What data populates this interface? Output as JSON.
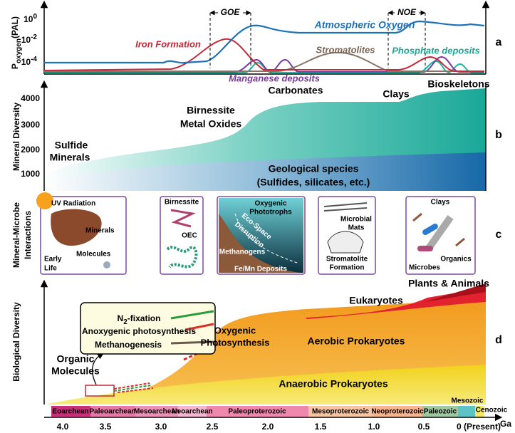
{
  "panel_a": {
    "letter": "a",
    "y_label": {
      "base": "P",
      "sub": "oxygen",
      "rest": "(PAL)"
    },
    "y_ticks": [
      {
        "base": "10",
        "exp": "0"
      },
      {
        "base": "10",
        "exp": "-2"
      },
      {
        "base": "10",
        "exp": "-4"
      }
    ],
    "labels": {
      "goe": "GOE",
      "noe": "NOE",
      "atmospheric_oxygen": "Atmospheric Oxygen",
      "iron_formation": "Iron Formation",
      "stromatolites": "Stromatolites",
      "phosphate": "Phosphate deposits",
      "manganese": "Manganese deposits"
    }
  },
  "panel_b": {
    "letter": "b",
    "y_label": "Mineral Diversity",
    "y_ticks": [
      1000,
      2000,
      3000,
      4000
    ],
    "labels": {
      "sulfide": [
        "Sulfide",
        "Minerals"
      ],
      "birnessite": [
        "Birnessite",
        "Metal Oxides"
      ],
      "carbonates": "Carbonates",
      "clays": "Clays",
      "bioskeletons": "Bioskeletons",
      "geological": [
        "Geological species",
        "(Sulfides, silicates, etc.)"
      ]
    }
  },
  "panel_c": {
    "letter": "c",
    "y_label": [
      "Mineral-Microbe",
      "Interactions"
    ],
    "boxes": [
      [
        "UV Radiation",
        "Minerals",
        "Molecules",
        "Early",
        "Life"
      ],
      [
        "Birnessite",
        "OEC"
      ],
      [
        "Oxygenic",
        "Phototrophs",
        "Eco-Space",
        "Disruption",
        "Methanogens",
        "Fe/Mn Deposits"
      ],
      [
        "Microbial",
        "Mats",
        "Stromatolite",
        "Formation"
      ],
      [
        "Clays",
        "Organics",
        "Microbes"
      ]
    ]
  },
  "panel_d": {
    "letter": "d",
    "y_label": "Biological Diversity",
    "labels": {
      "plants": "Plants & Animals",
      "eukaryotes": "Eukaryotes",
      "aerobic": "Aerobic Prokaryotes",
      "oxygenic": [
        "Oxygenic",
        "Photosynthesis"
      ],
      "organic": [
        "Organic",
        "Molecules"
      ],
      "anaerobic": "Anaerobic Prokaryotes"
    },
    "inset": {
      "n2": [
        "N",
        "2",
        "-fixation"
      ],
      "anoxygenic": "Anoxygenic photosynthesis",
      "methanogenesis": "Methanogenesis"
    },
    "timeline": {
      "eons": [
        "Eoarchean",
        "Paleoarchean",
        "Mesoarchean",
        "Neoarchean",
        "Paleoproterozoic",
        "Mesoproterozoic",
        "Neoproterozoic",
        "Paleozoic",
        "Mesozoic",
        "Cenozoic"
      ],
      "ticks": [
        "4.0",
        "3.5",
        "3.0",
        "2.5",
        "2.0",
        "1.5",
        "1.0",
        "0.5",
        "0 (Present)"
      ],
      "unit": "Ga"
    }
  }
}
